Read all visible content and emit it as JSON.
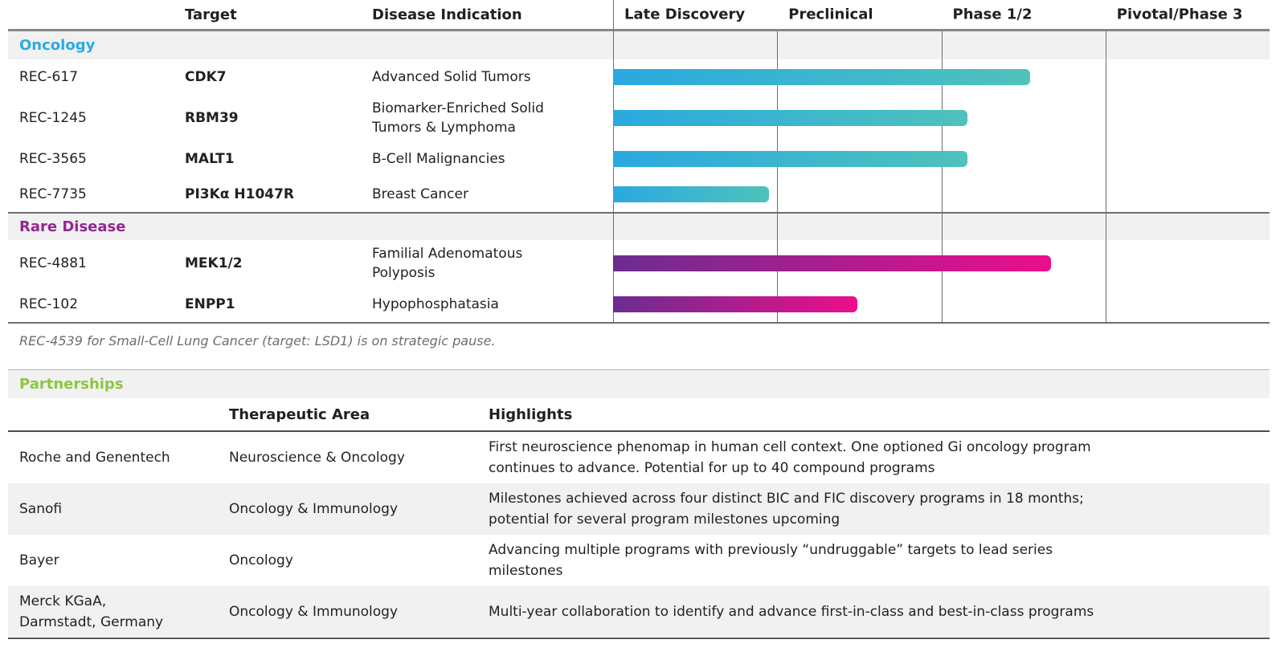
{
  "pipeline": {
    "header": {
      "program": "",
      "target": "Target",
      "indication": "Disease Indication"
    },
    "phases": [
      "Late Discovery",
      "Preclinical",
      "Phase 1/2",
      "Pivotal/Phase 3"
    ],
    "sections": [
      {
        "name": "Oncology",
        "color": "#29ABE2",
        "bar_gradient": [
          "#2AA9E0",
          "#4FC2BC"
        ],
        "programs": [
          {
            "id": "REC-617",
            "target": "CDK7",
            "indication_lines": [
              "Advanced Solid Tumors"
            ],
            "phase_progress": 2.54
          },
          {
            "id": "REC-1245",
            "target": "RBM39",
            "indication_lines": [
              "Biomarker-Enriched Solid",
              "Tumors & Lymphoma"
            ],
            "phase_progress": 2.16
          },
          {
            "id": "REC-3565",
            "target": "MALT1",
            "indication_lines": [
              "B-Cell Malignancies"
            ],
            "phase_progress": 2.16
          },
          {
            "id": "REC-7735",
            "target": "PI3Kα H1047R",
            "indication_lines": [
              "Breast Cancer"
            ],
            "phase_progress": 0.95
          }
        ]
      },
      {
        "name": "Rare Disease",
        "color": "#92278F",
        "bar_gradient": [
          "#6B2D90",
          "#EC0E8C"
        ],
        "programs": [
          {
            "id": "REC-4881",
            "target": "MEK1/2",
            "indication_lines": [
              "Familial Adenomatous",
              "Polyposis"
            ],
            "phase_progress": 2.67
          },
          {
            "id": "REC-102",
            "target": "ENPP1",
            "indication_lines": [
              "Hypophosphatasia"
            ],
            "phase_progress": 1.49
          }
        ]
      }
    ],
    "footnote": "REC-4539 for Small-Cell Lung Cancer (target: LSD1) is on strategic pause."
  },
  "partnerships": {
    "title": "Partnerships",
    "title_color": "#8DC63F",
    "header": {
      "partner": "",
      "area": "Therapeutic Area",
      "highlights": "Highlights"
    },
    "rows": [
      {
        "partner_lines": [
          "Roche and Genentech"
        ],
        "area": "Neuroscience & Oncology",
        "highlight_lines": [
          "First neuroscience phenomap in human cell context. One optioned Gi oncology program",
          "continues to advance. Potential for up to 40 compound programs"
        ]
      },
      {
        "partner_lines": [
          "Sanofi"
        ],
        "area": "Oncology & Immunology",
        "highlight_lines": [
          "Milestones achieved across four distinct BIC and FIC discovery programs in 18 months;",
          "potential for several program milestones upcoming"
        ]
      },
      {
        "partner_lines": [
          "Bayer"
        ],
        "area": "Oncology",
        "highlight_lines": [
          "Advancing multiple programs with previously “undruggable” targets to lead series",
          "milestones"
        ]
      },
      {
        "partner_lines": [
          "Merck KGaA,",
          "Darmstadt, Germany"
        ],
        "area": "Oncology & Immunology",
        "highlight_lines": [
          "Multi-year collaboration to identify and advance first-in-class and best-in-class programs"
        ]
      }
    ]
  },
  "chart_data": {
    "type": "bar",
    "subtype": "horizontal-pipeline-gantt",
    "title": "",
    "x_axis": {
      "labels": [
        "Late Discovery",
        "Preclinical",
        "Phase 1/2",
        "Pivotal/Phase 3"
      ],
      "range": [
        0,
        4
      ],
      "units": "development phase (each phase spans 1 unit)"
    },
    "grid": "vertical phase dividers at 0, 1, 2, 3",
    "legend_position": "none",
    "series": [
      {
        "group": "Oncology",
        "program": "REC-617",
        "target": "CDK7",
        "indication": "Advanced Solid Tumors",
        "phase_progress": 2.54
      },
      {
        "group": "Oncology",
        "program": "REC-1245",
        "target": "RBM39",
        "indication": "Biomarker-Enriched Solid Tumors & Lymphoma",
        "phase_progress": 2.16
      },
      {
        "group": "Oncology",
        "program": "REC-3565",
        "target": "MALT1",
        "indication": "B-Cell Malignancies",
        "phase_progress": 2.16
      },
      {
        "group": "Oncology",
        "program": "REC-7735",
        "target": "PI3Kα H1047R",
        "indication": "Breast Cancer",
        "phase_progress": 0.95
      },
      {
        "group": "Rare Disease",
        "program": "REC-4881",
        "target": "MEK1/2",
        "indication": "Familial Adenomatous Polyposis",
        "phase_progress": 2.67
      },
      {
        "group": "Rare Disease",
        "program": "REC-102",
        "target": "ENPP1",
        "indication": "Hypophosphatasia",
        "phase_progress": 1.49
      }
    ],
    "bar_colors": {
      "Oncology": [
        "#2AA9E0",
        "#4FC2BC"
      ],
      "Rare Disease": [
        "#6B2D90",
        "#EC0E8C"
      ]
    }
  }
}
